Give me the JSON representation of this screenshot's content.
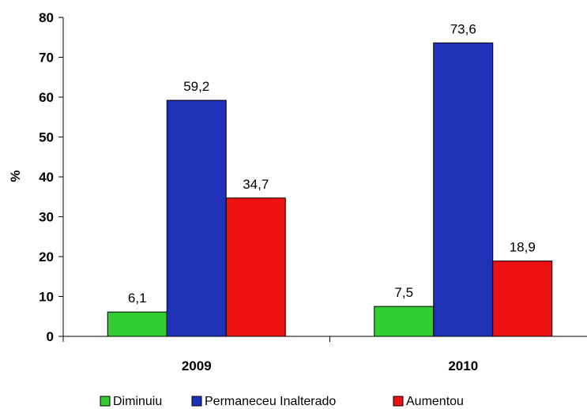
{
  "chart_data": {
    "type": "bar",
    "categories": [
      "2009",
      "2010"
    ],
    "series": [
      {
        "name": "Diminuiu",
        "values": [
          6.1,
          7.5
        ],
        "labels": [
          "6,1",
          "7,5"
        ],
        "color": "#33cc33"
      },
      {
        "name": "Permaneceu Inalterado",
        "values": [
          59.2,
          73.6
        ],
        "labels": [
          "59,2",
          "73,6"
        ],
        "color": "#1f31b8"
      },
      {
        "name": "Aumentou",
        "values": [
          34.7,
          18.9
        ],
        "labels": [
          "34,7",
          "18,9"
        ],
        "color": "#ee1111"
      }
    ],
    "ylabel": "%",
    "ylim": [
      0,
      80
    ],
    "yticks": [
      0,
      10,
      20,
      30,
      40,
      50,
      60,
      70,
      80
    ],
    "grid": false,
    "legend_position": "bottom"
  }
}
